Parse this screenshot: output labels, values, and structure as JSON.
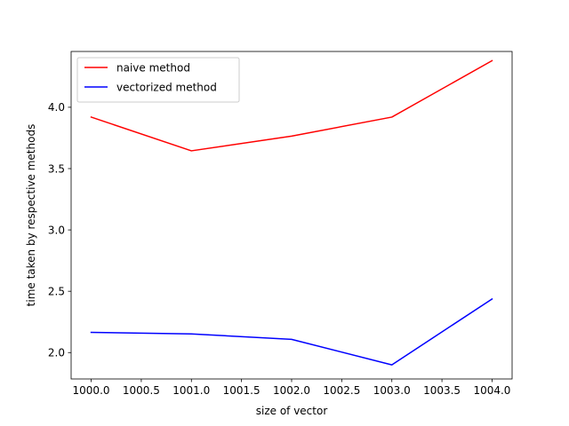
{
  "chart_data": {
    "type": "line",
    "title": "",
    "xlabel": "size of vector",
    "ylabel": "time taken by respective methods",
    "x": [
      1000,
      1001,
      1002,
      1003,
      1004
    ],
    "xlim": [
      999.8,
      1004.2
    ],
    "ylim": [
      1.785,
      4.455
    ],
    "xticks": [
      1000.0,
      1000.5,
      1001.0,
      1001.5,
      1002.0,
      1002.5,
      1003.0,
      1003.5,
      1004.0
    ],
    "xtick_labels": [
      "1000.0",
      "1000.5",
      "1001.0",
      "1001.5",
      "1002.0",
      "1002.5",
      "1003.0",
      "1003.5",
      "1004.0"
    ],
    "yticks": [
      2.0,
      2.5,
      3.0,
      3.5,
      4.0
    ],
    "ytick_labels": [
      "2.0",
      "2.5",
      "3.0",
      "3.5",
      "4.0"
    ],
    "grid": false,
    "legend_position": "upper-left",
    "series": [
      {
        "name": "naive method",
        "color": "#ff0000",
        "values": [
          3.92,
          3.645,
          3.765,
          3.92,
          4.38
        ]
      },
      {
        "name": "vectorized method",
        "color": "#0000ff",
        "values": [
          2.165,
          2.152,
          2.108,
          1.9,
          2.437
        ]
      }
    ]
  }
}
